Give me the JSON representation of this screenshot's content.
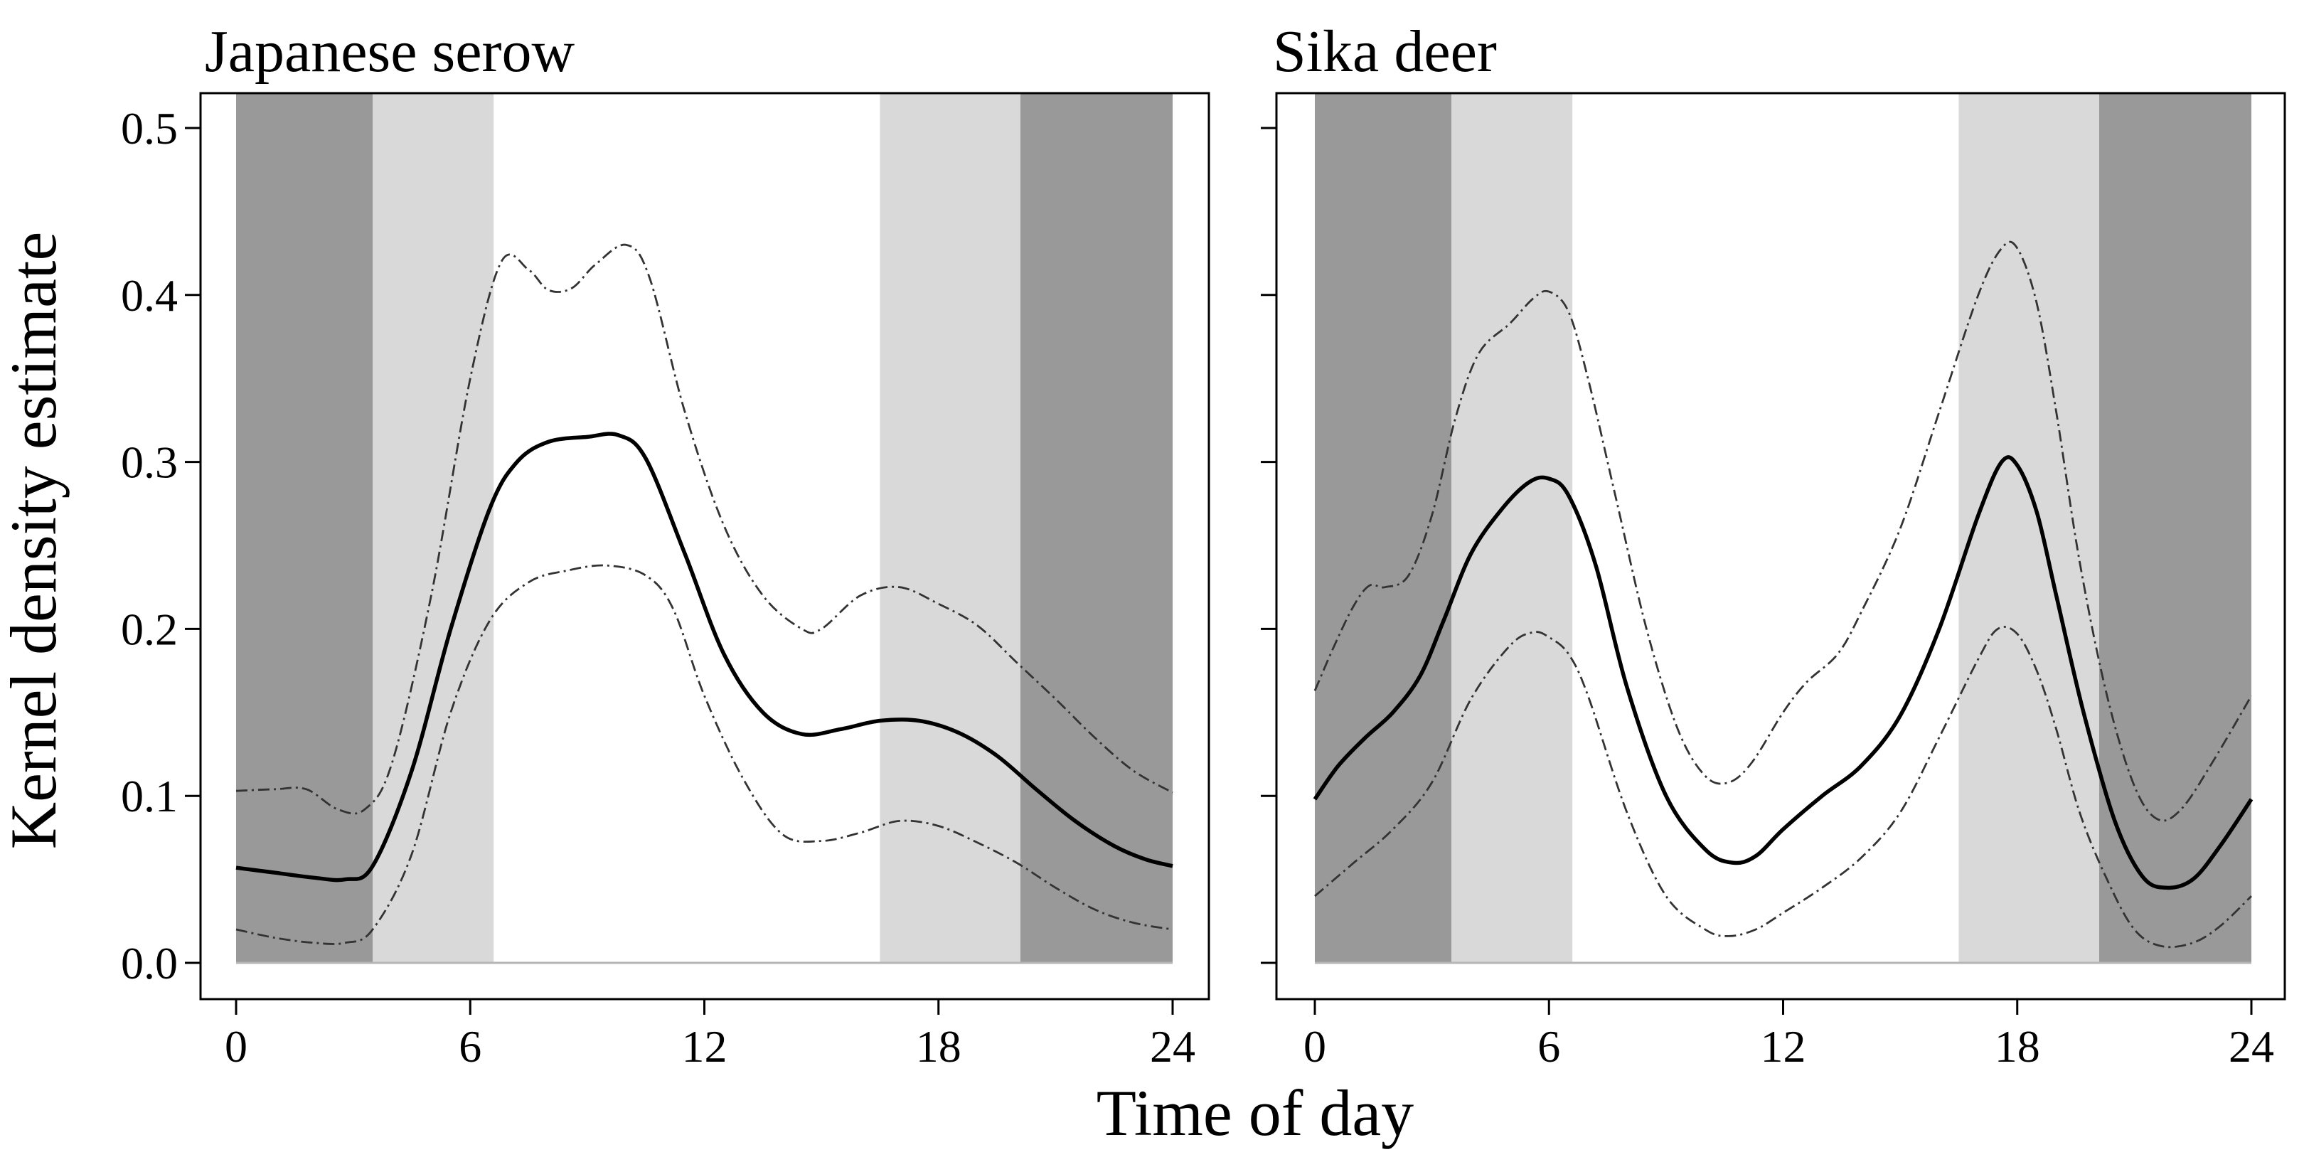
{
  "figure": {
    "ylabel": "Kernel density estimate",
    "xlabel": "Time of day"
  },
  "colors": {
    "night": "#999999",
    "twilight": "#d9d9d9",
    "day": "#ffffff",
    "frame": "#000000",
    "density": "#000000",
    "ci": "#333333",
    "baseline": "#b5b5b5"
  },
  "chart_data": [
    {
      "type": "line",
      "title": "Japanese serow",
      "xlabel": "Time of day",
      "ylabel": "Kernel density estimate",
      "xlim": [
        0,
        24
      ],
      "ylim": [
        0,
        0.5
      ],
      "xticks": [
        "0",
        "6",
        "12",
        "18",
        "24"
      ],
      "yticks": [
        "0.0",
        "0.1",
        "0.2",
        "0.3",
        "0.4",
        "0.5"
      ],
      "shading": [
        {
          "from": 0,
          "to": 3.5,
          "kind": "night"
        },
        {
          "from": 3.5,
          "to": 6.6,
          "kind": "twilight"
        },
        {
          "from": 16.5,
          "to": 20.1,
          "kind": "twilight"
        },
        {
          "from": 20.1,
          "to": 24,
          "kind": "night"
        }
      ],
      "series": [
        {
          "name": "density",
          "style": "solid",
          "x": [
            0,
            1,
            2,
            2.8,
            3.5,
            4.5,
            5.5,
            6.5,
            7.2,
            8,
            9,
            9.8,
            10.5,
            11.5,
            12.5,
            13.5,
            14.5,
            15.5,
            16.5,
            17.5,
            18.5,
            19.5,
            20.5,
            21.5,
            22.5,
            23.3,
            24
          ],
          "values": [
            0.057,
            0.054,
            0.051,
            0.05,
            0.058,
            0.115,
            0.2,
            0.272,
            0.3,
            0.312,
            0.315,
            0.316,
            0.302,
            0.245,
            0.185,
            0.15,
            0.137,
            0.14,
            0.145,
            0.145,
            0.138,
            0.124,
            0.104,
            0.085,
            0.07,
            0.062,
            0.058
          ]
        },
        {
          "name": "ci-upper",
          "style": "dashed",
          "x": [
            0,
            1,
            1.8,
            2.6,
            3.3,
            4,
            5,
            6,
            6.8,
            7.5,
            8,
            8.6,
            9.2,
            10,
            10.6,
            11.5,
            12.5,
            13.5,
            14.5,
            15,
            16,
            17,
            18,
            19,
            20,
            21,
            22,
            23,
            24
          ],
          "values": [
            0.103,
            0.104,
            0.104,
            0.092,
            0.092,
            0.12,
            0.22,
            0.35,
            0.42,
            0.415,
            0.403,
            0.404,
            0.418,
            0.43,
            0.41,
            0.33,
            0.262,
            0.22,
            0.2,
            0.2,
            0.22,
            0.225,
            0.215,
            0.202,
            0.18,
            0.158,
            0.135,
            0.115,
            0.102
          ]
        },
        {
          "name": "ci-lower",
          "style": "dashed",
          "x": [
            0,
            1,
            2,
            2.8,
            3.5,
            4.5,
            5.5,
            6.5,
            7.5,
            8.5,
            9.5,
            10.5,
            11.2,
            12,
            13,
            14,
            15,
            16,
            17,
            18,
            19,
            20,
            21,
            22,
            23,
            24
          ],
          "values": [
            0.02,
            0.015,
            0.012,
            0.012,
            0.02,
            0.065,
            0.15,
            0.205,
            0.228,
            0.235,
            0.238,
            0.232,
            0.212,
            0.16,
            0.11,
            0.077,
            0.073,
            0.078,
            0.085,
            0.082,
            0.072,
            0.06,
            0.045,
            0.032,
            0.024,
            0.02
          ]
        }
      ]
    },
    {
      "type": "line",
      "title": "Sika deer",
      "xlabel": "Time of day",
      "ylabel": "Kernel density estimate",
      "xlim": [
        0,
        24
      ],
      "ylim": [
        0,
        0.5
      ],
      "xticks": [
        "0",
        "6",
        "12",
        "18",
        "24"
      ],
      "yticks": [
        "0.0",
        "0.1",
        "0.2",
        "0.3",
        "0.4",
        "0.5"
      ],
      "shading": [
        {
          "from": 0,
          "to": 3.5,
          "kind": "night"
        },
        {
          "from": 3.5,
          "to": 6.6,
          "kind": "twilight"
        },
        {
          "from": 16.5,
          "to": 20.1,
          "kind": "twilight"
        },
        {
          "from": 20.1,
          "to": 24,
          "kind": "night"
        }
      ],
      "series": [
        {
          "name": "density",
          "style": "solid",
          "x": [
            0,
            0.6,
            1.3,
            2,
            2.7,
            3.3,
            4,
            4.8,
            5.5,
            6,
            6.5,
            7.2,
            8,
            9,
            10,
            10.7,
            11.3,
            12,
            13,
            14,
            15,
            16,
            17,
            17.6,
            18,
            18.5,
            19,
            19.7,
            20.5,
            21.2,
            21.8,
            22.5,
            23.2,
            24
          ],
          "values": [
            0.098,
            0.118,
            0.135,
            0.15,
            0.172,
            0.205,
            0.245,
            0.272,
            0.288,
            0.29,
            0.28,
            0.238,
            0.165,
            0.1,
            0.068,
            0.06,
            0.064,
            0.08,
            0.1,
            0.118,
            0.148,
            0.2,
            0.268,
            0.3,
            0.298,
            0.27,
            0.22,
            0.15,
            0.085,
            0.052,
            0.045,
            0.05,
            0.07,
            0.098
          ]
        },
        {
          "name": "ci-upper",
          "style": "dashed",
          "x": [
            0,
            0.5,
            1,
            1.4,
            1.8,
            2.4,
            3,
            3.6,
            4.2,
            5,
            5.6,
            6,
            6.5,
            7,
            7.7,
            8.5,
            9.3,
            10,
            10.6,
            11.2,
            12,
            12.6,
            13.4,
            14,
            15,
            16,
            17,
            17.6,
            18,
            18.5,
            19,
            19.6,
            20.3,
            21,
            21.6,
            22.2,
            23,
            24
          ],
          "values": [
            0.163,
            0.19,
            0.214,
            0.226,
            0.225,
            0.232,
            0.268,
            0.326,
            0.365,
            0.383,
            0.398,
            0.402,
            0.39,
            0.35,
            0.28,
            0.2,
            0.14,
            0.112,
            0.108,
            0.12,
            0.15,
            0.168,
            0.185,
            0.21,
            0.26,
            0.33,
            0.4,
            0.428,
            0.428,
            0.395,
            0.33,
            0.24,
            0.16,
            0.106,
            0.086,
            0.092,
            0.12,
            0.16
          ]
        },
        {
          "name": "ci-lower",
          "style": "dashed",
          "x": [
            0,
            1,
            2,
            3,
            4,
            5,
            5.6,
            6,
            6.5,
            7,
            8,
            9,
            10,
            10.6,
            11.3,
            12,
            13,
            14,
            15,
            16,
            17,
            17.5,
            18,
            18.5,
            19,
            19.6,
            20.3,
            21,
            21.7,
            22.5,
            23.2,
            24
          ],
          "values": [
            0.04,
            0.06,
            0.08,
            0.108,
            0.158,
            0.19,
            0.198,
            0.195,
            0.185,
            0.16,
            0.09,
            0.04,
            0.02,
            0.016,
            0.02,
            0.03,
            0.045,
            0.063,
            0.09,
            0.135,
            0.182,
            0.2,
            0.197,
            0.175,
            0.14,
            0.09,
            0.05,
            0.02,
            0.01,
            0.012,
            0.022,
            0.04
          ]
        }
      ]
    }
  ]
}
